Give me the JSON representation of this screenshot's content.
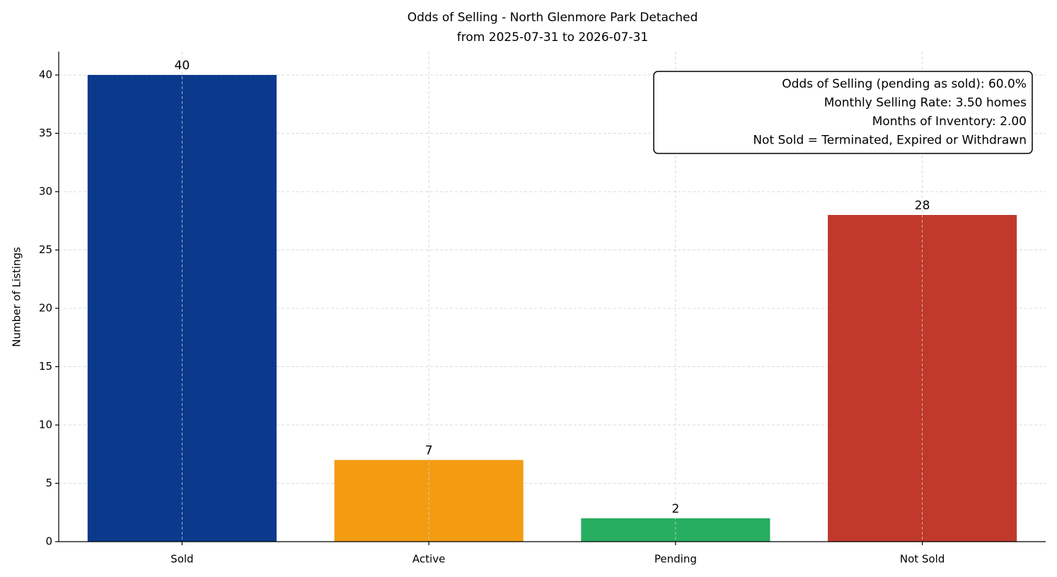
{
  "chart_data": {
    "type": "bar",
    "title": "Odds of Selling - North Glenmore Park Detached",
    "subtitle": "from 2025-07-31 to 2026-07-31",
    "y_label": "Number of Listings",
    "categories": [
      "Sold",
      "Active",
      "Pending",
      "Not Sold"
    ],
    "values": [
      40,
      7,
      2,
      28
    ],
    "colors": [
      "#0b3a8d",
      "#f39c12",
      "#27ae60",
      "#c0392b"
    ],
    "ylim": [
      0,
      42
    ],
    "yticks": [
      0,
      5,
      10,
      15,
      20,
      25,
      30,
      35,
      40
    ],
    "grid": true,
    "annotations": [
      "Odds of Selling (pending as sold): 60.0%",
      "Monthly Selling Rate: 3.50 homes",
      "Months of Inventory: 2.00",
      "Not Sold = Terminated, Expired or Withdrawn"
    ]
  }
}
